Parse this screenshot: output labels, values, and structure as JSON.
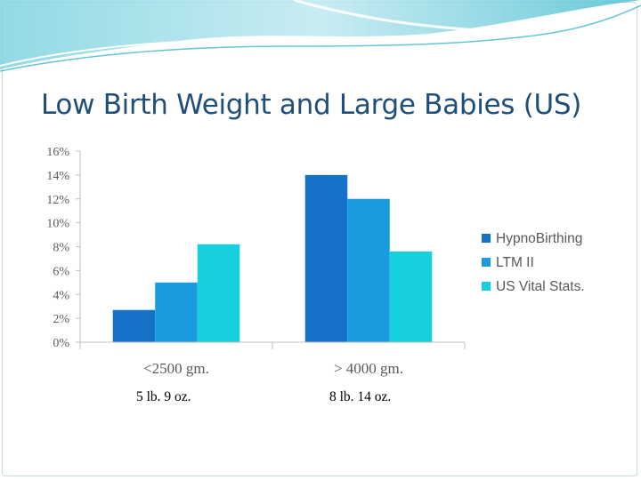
{
  "slide": {
    "title": "Low Birth Weight and Large Babies (US)"
  },
  "weight_notes": [
    "5 lb. 9 oz.",
    "8 lb. 14 oz."
  ],
  "colors": {
    "title": "#1f4e79",
    "accent_wave": "#3fb6c9"
  },
  "chart_data": {
    "type": "bar",
    "categories": [
      "<2500 gm.",
      "> 4000 gm."
    ],
    "series": [
      {
        "name": "HypnoBirthing",
        "color": "#1672c8",
        "values": [
          2.7,
          14.0
        ]
      },
      {
        "name": "LTM II",
        "color": "#1a9be0",
        "values": [
          5.0,
          12.0
        ]
      },
      {
        "name": "US Vital Stats.",
        "color": "#17d0de",
        "values": [
          8.2,
          7.6
        ]
      }
    ],
    "ylim": [
      0,
      16
    ],
    "ytick_values": [
      0,
      2,
      4,
      6,
      8,
      10,
      12,
      14,
      16
    ],
    "ytick_labels": [
      "0%",
      "2%",
      "4%",
      "6%",
      "8%",
      "10%",
      "12%",
      "14%",
      "16%"
    ],
    "grid": false,
    "legend_position": "right"
  }
}
